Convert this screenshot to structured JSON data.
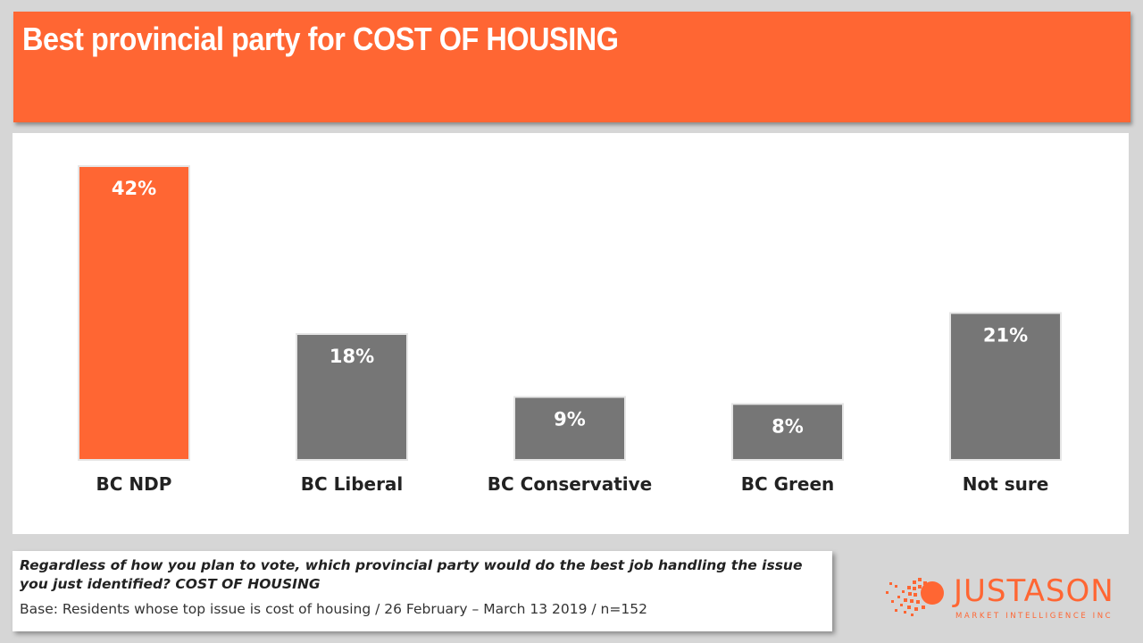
{
  "header": {
    "title": "Best provincial party for COST OF HOUSING"
  },
  "chart_data": {
    "type": "bar",
    "title": "Best provincial party for COST OF HOUSING",
    "categories": [
      "BC NDP",
      "BC Liberal",
      "BC Conservative",
      "BC Green",
      "Not sure"
    ],
    "values": [
      42,
      18,
      9,
      8,
      21
    ],
    "value_labels": [
      "42%",
      "18%",
      "9%",
      "8%",
      "21%"
    ],
    "unit": "%",
    "colors": [
      "#ff6633",
      "#767676",
      "#767676",
      "#767676",
      "#767676"
    ],
    "ylim": [
      0,
      42
    ],
    "xlabel": "",
    "ylabel": "",
    "grid": false,
    "legend": "none"
  },
  "footnote": {
    "question": "Regardless of how you plan to vote, which provincial party would do the best job handling the issue you just identified? COST OF HOUSING",
    "base": "Base: Residents whose top issue is cost of housing / 26 February – March 13 2019 / n=152"
  },
  "logo": {
    "name": "JUSTASON",
    "tagline": "MARKET INTELLIGENCE INC",
    "accent_color": "#ff6633"
  }
}
